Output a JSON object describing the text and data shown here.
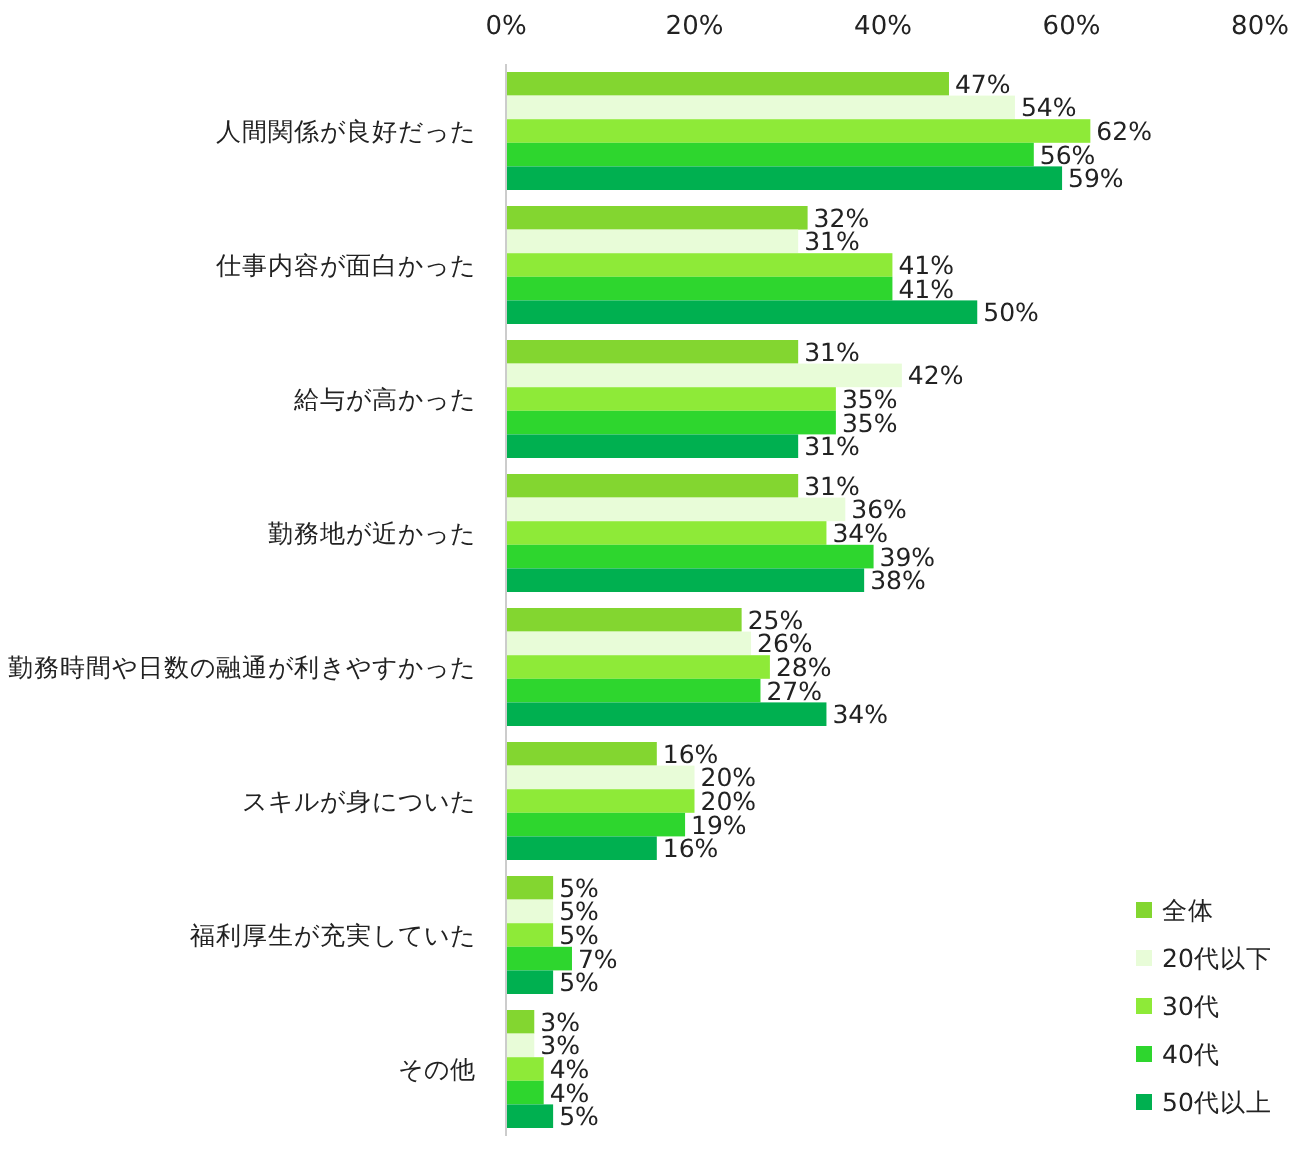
{
  "chart_data": {
    "type": "bar",
    "orientation": "horizontal",
    "categories": [
      "人間関係が良好だった",
      "仕事内容が面白かった",
      "給与が高かった",
      "勤務地が近かった",
      "勤務時間や日数の融通が利きやすかった",
      "スキルが身についた",
      "福利厚生が充実していた",
      "その他"
    ],
    "series": [
      {
        "name": "全体",
        "color": "#83d630",
        "values": [
          47,
          32,
          31,
          31,
          25,
          16,
          5,
          3
        ],
        "value_labels": [
          "47%",
          "32%",
          "31%",
          "31%",
          "25%",
          "16%",
          "5%",
          "3%"
        ]
      },
      {
        "name": "20代以下",
        "color": "#e8fcd8",
        "values": [
          54,
          31,
          42,
          36,
          26,
          20,
          5,
          3
        ],
        "value_labels": [
          "54%",
          "31%",
          "42%",
          "36%",
          "26%",
          "20%",
          "5%",
          "3%"
        ]
      },
      {
        "name": "30代",
        "color": "#8eea38",
        "values": [
          62,
          41,
          35,
          34,
          28,
          20,
          5,
          4
        ],
        "value_labels": [
          "62%",
          "41%",
          "35%",
          "34%",
          "28%",
          "20%",
          "5%",
          "4%"
        ]
      },
      {
        "name": "40代",
        "color": "#2ed62e",
        "values": [
          56,
          41,
          35,
          39,
          27,
          19,
          7,
          4
        ],
        "value_labels": [
          "56%",
          "41%",
          "35%",
          "39%",
          "27%",
          "19%",
          "7%",
          "4%"
        ]
      },
      {
        "name": "50代以上",
        "color": "#00b050",
        "values": [
          59,
          50,
          31,
          38,
          34,
          16,
          5,
          5
        ],
        "value_labels": [
          "59%",
          "50%",
          "31%",
          "38%",
          "34%",
          "16%",
          "5%",
          "5%"
        ]
      }
    ],
    "xlim": [
      0,
      80
    ],
    "xticks": [
      {
        "value": 0,
        "label": "0%"
      },
      {
        "value": 20,
        "label": "20%"
      },
      {
        "value": 40,
        "label": "40%"
      },
      {
        "value": 60,
        "label": "60%"
      },
      {
        "value": 80,
        "label": "80%"
      }
    ],
    "grid": false,
    "legend": "bottom right"
  }
}
